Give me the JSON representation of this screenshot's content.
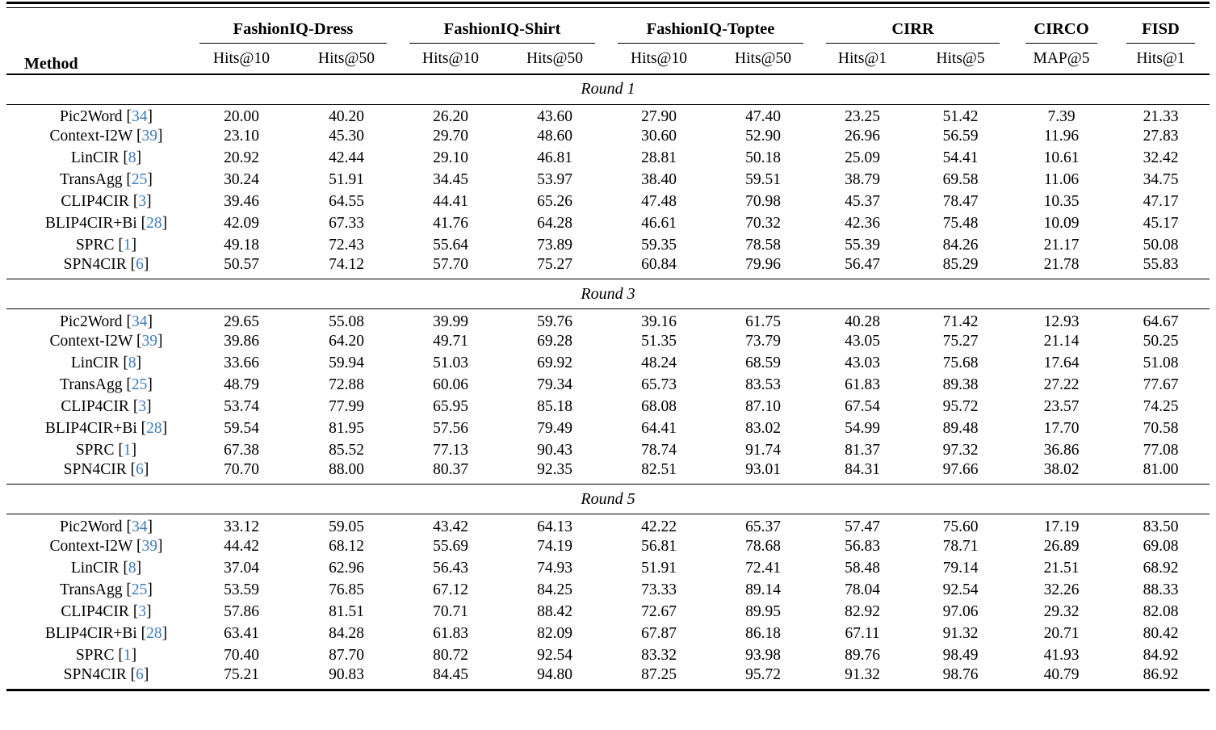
{
  "ui": {
    "bracket_open": "[",
    "bracket_close": "]"
  },
  "colors": {
    "cite_blue": "#3d7cbf",
    "text": "#000000",
    "background": "#ffffff",
    "rule": "#000000"
  },
  "table": {
    "method_header": "Method",
    "groups": [
      {
        "label": "FashionIQ-Dress",
        "cols": [
          "Hits@10",
          "Hits@50"
        ]
      },
      {
        "label": "FashionIQ-Shirt",
        "cols": [
          "Hits@10",
          "Hits@50"
        ]
      },
      {
        "label": "FashionIQ-Toptee",
        "cols": [
          "Hits@10",
          "Hits@50"
        ]
      },
      {
        "label": "CIRR",
        "cols": [
          "Hits@1",
          "Hits@5"
        ]
      },
      {
        "label": "CIRCO",
        "cols": [
          "MAP@5"
        ]
      },
      {
        "label": "FISD",
        "cols": [
          "Hits@1"
        ]
      }
    ],
    "sections": [
      {
        "label": "Round 1",
        "rows": [
          {
            "method": "Pic2Word",
            "ref": "34",
            "values": [
              "20.00",
              "40.20",
              "26.20",
              "43.60",
              "27.90",
              "47.40",
              "23.25",
              "51.42",
              "7.39",
              "21.33"
            ]
          },
          {
            "method": "Context-I2W",
            "ref": "39",
            "values": [
              "23.10",
              "45.30",
              "29.70",
              "48.60",
              "30.60",
              "52.90",
              "26.96",
              "56.59",
              "11.96",
              "27.83"
            ]
          },
          {
            "method": "LinCIR",
            "ref": "8",
            "values": [
              "20.92",
              "42.44",
              "29.10",
              "46.81",
              "28.81",
              "50.18",
              "25.09",
              "54.41",
              "10.61",
              "32.42"
            ]
          },
          {
            "method": "TransAgg",
            "ref": "25",
            "values": [
              "30.24",
              "51.91",
              "34.45",
              "53.97",
              "38.40",
              "59.51",
              "38.79",
              "69.58",
              "11.06",
              "34.75"
            ]
          },
          {
            "method": "CLIP4CIR",
            "ref": "3",
            "values": [
              "39.46",
              "64.55",
              "44.41",
              "65.26",
              "47.48",
              "70.98",
              "45.37",
              "78.47",
              "10.35",
              "47.17"
            ]
          },
          {
            "method": "BLIP4CIR+Bi",
            "ref": "28",
            "values": [
              "42.09",
              "67.33",
              "41.76",
              "64.28",
              "46.61",
              "70.32",
              "42.36",
              "75.48",
              "10.09",
              "45.17"
            ]
          },
          {
            "method": "SPRC",
            "ref": "1",
            "values": [
              "49.18",
              "72.43",
              "55.64",
              "73.89",
              "59.35",
              "78.58",
              "55.39",
              "84.26",
              "21.17",
              "50.08"
            ]
          },
          {
            "method": "SPN4CIR",
            "ref": "6",
            "values": [
              "50.57",
              "74.12",
              "57.70",
              "75.27",
              "60.84",
              "79.96",
              "56.47",
              "85.29",
              "21.78",
              "55.83"
            ]
          }
        ]
      },
      {
        "label": "Round 3",
        "rows": [
          {
            "method": "Pic2Word",
            "ref": "34",
            "values": [
              "29.65",
              "55.08",
              "39.99",
              "59.76",
              "39.16",
              "61.75",
              "40.28",
              "71.42",
              "12.93",
              "64.67"
            ]
          },
          {
            "method": "Context-I2W",
            "ref": "39",
            "values": [
              "39.86",
              "64.20",
              "49.71",
              "69.28",
              "51.35",
              "73.79",
              "43.05",
              "75.27",
              "21.14",
              "50.25"
            ]
          },
          {
            "method": "LinCIR",
            "ref": "8",
            "values": [
              "33.66",
              "59.94",
              "51.03",
              "69.92",
              "48.24",
              "68.59",
              "43.03",
              "75.68",
              "17.64",
              "51.08"
            ]
          },
          {
            "method": "TransAgg",
            "ref": "25",
            "values": [
              "48.79",
              "72.88",
              "60.06",
              "79.34",
              "65.73",
              "83.53",
              "61.83",
              "89.38",
              "27.22",
              "77.67"
            ]
          },
          {
            "method": "CLIP4CIR",
            "ref": "3",
            "values": [
              "53.74",
              "77.99",
              "65.95",
              "85.18",
              "68.08",
              "87.10",
              "67.54",
              "95.72",
              "23.57",
              "74.25"
            ]
          },
          {
            "method": "BLIP4CIR+Bi",
            "ref": "28",
            "values": [
              "59.54",
              "81.95",
              "57.56",
              "79.49",
              "64.41",
              "83.02",
              "54.99",
              "89.48",
              "17.70",
              "70.58"
            ]
          },
          {
            "method": "SPRC",
            "ref": "1",
            "values": [
              "67.38",
              "85.52",
              "77.13",
              "90.43",
              "78.74",
              "91.74",
              "81.37",
              "97.32",
              "36.86",
              "77.08"
            ]
          },
          {
            "method": "SPN4CIR",
            "ref": "6",
            "values": [
              "70.70",
              "88.00",
              "80.37",
              "92.35",
              "82.51",
              "93.01",
              "84.31",
              "97.66",
              "38.02",
              "81.00"
            ]
          }
        ]
      },
      {
        "label": "Round 5",
        "rows": [
          {
            "method": "Pic2Word",
            "ref": "34",
            "values": [
              "33.12",
              "59.05",
              "43.42",
              "64.13",
              "42.22",
              "65.37",
              "57.47",
              "75.60",
              "17.19",
              "83.50"
            ]
          },
          {
            "method": "Context-I2W",
            "ref": "39",
            "values": [
              "44.42",
              "68.12",
              "55.69",
              "74.19",
              "56.81",
              "78.68",
              "56.83",
              "78.71",
              "26.89",
              "69.08"
            ]
          },
          {
            "method": "LinCIR",
            "ref": "8",
            "values": [
              "37.04",
              "62.96",
              "56.43",
              "74.93",
              "51.91",
              "72.41",
              "58.48",
              "79.14",
              "21.51",
              "68.92"
            ]
          },
          {
            "method": "TransAgg",
            "ref": "25",
            "values": [
              "53.59",
              "76.85",
              "67.12",
              "84.25",
              "73.33",
              "89.14",
              "78.04",
              "92.54",
              "32.26",
              "88.33"
            ]
          },
          {
            "method": "CLIP4CIR",
            "ref": "3",
            "values": [
              "57.86",
              "81.51",
              "70.71",
              "88.42",
              "72.67",
              "89.95",
              "82.92",
              "97.06",
              "29.32",
              "82.08"
            ]
          },
          {
            "method": "BLIP4CIR+Bi",
            "ref": "28",
            "values": [
              "63.41",
              "84.28",
              "61.83",
              "82.09",
              "67.87",
              "86.18",
              "67.11",
              "91.32",
              "20.71",
              "80.42"
            ]
          },
          {
            "method": "SPRC",
            "ref": "1",
            "values": [
              "70.40",
              "87.70",
              "80.72",
              "92.54",
              "83.32",
              "93.98",
              "89.76",
              "98.49",
              "41.93",
              "84.92"
            ]
          },
          {
            "method": "SPN4CIR",
            "ref": "6",
            "values": [
              "75.21",
              "90.83",
              "84.45",
              "94.80",
              "87.25",
              "95.72",
              "91.32",
              "98.76",
              "40.79",
              "86.92"
            ]
          }
        ]
      }
    ]
  }
}
